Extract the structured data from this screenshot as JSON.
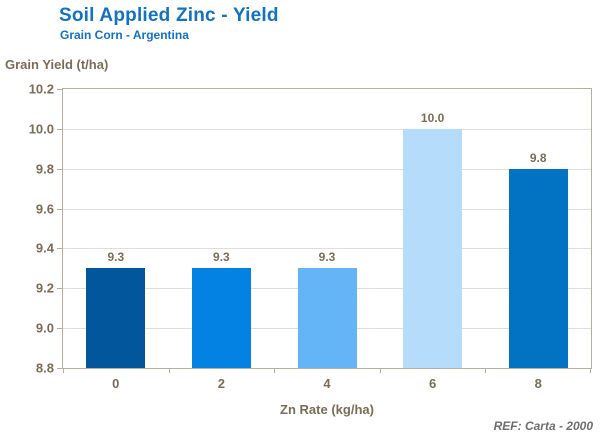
{
  "chart_data": {
    "type": "bar",
    "title": "Soil Applied Zinc - Yield",
    "subtitle": "Grain Corn - Argentina",
    "ylabel": "Grain Yield (t/ha)",
    "xlabel": "Zn Rate (kg/ha)",
    "ref": "REF: Carta - 2000",
    "categories": [
      "0",
      "2",
      "4",
      "6",
      "8"
    ],
    "values": [
      9.3,
      9.3,
      9.3,
      10.0,
      9.8
    ],
    "bar_labels": [
      "9.3",
      "9.3",
      "9.3",
      "10.0",
      "9.8"
    ],
    "bar_colors": [
      "#02569B",
      "#0482E4",
      "#63B5F7",
      "#B5DCFB",
      "#0272C2"
    ],
    "ylim": [
      8.8,
      10.2
    ],
    "yticks": [
      "10.2",
      "10.0",
      "9.8",
      "9.6",
      "9.4",
      "9.2",
      "9.0",
      "8.8"
    ],
    "grid": true,
    "legend": "none",
    "colors": {
      "title_text": "#1272C4",
      "axis_text": "#7B6C56",
      "ref_text": "#6E6E6E",
      "plot_border": "#B9AE9E",
      "gridline": "#E2DDD6",
      "background": "#FFFFFF"
    }
  }
}
